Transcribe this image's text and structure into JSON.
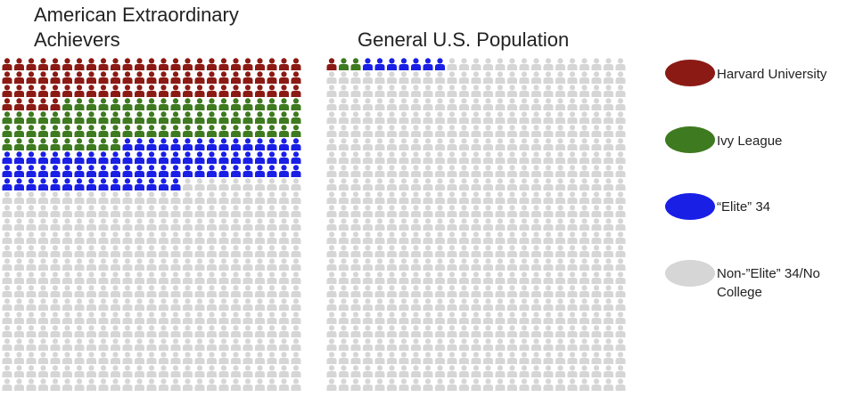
{
  "chart_data": {
    "type": "pictograph",
    "grid": {
      "columns": 25,
      "rows": 25,
      "total_icons": 625
    },
    "categories": [
      "Harvard University",
      "Ivy League",
      "“Elite” 34",
      "Non-”Elite” 34/No College"
    ],
    "colors": {
      "Harvard University": "#8b1a14",
      "Ivy League": "#3e7a1f",
      "“Elite” 34": "#1a1fe6",
      "Non-”Elite” 34/No College": "#d6d6d6"
    },
    "panels": [
      {
        "title_line1": "American Extraordinary",
        "title_line2": "Achievers",
        "counts": {
          "Harvard University": 80,
          "Ivy League": 80,
          "“Elite” 34": 80,
          "Non-”Elite” 34/No College": 385
        }
      },
      {
        "title": "General U.S. Population",
        "counts": {
          "Harvard University": 1,
          "Ivy League": 2,
          "“Elite” 34": 7,
          "Non-”Elite” 34/No College": 615
        }
      }
    ],
    "legend": {
      "position": "right",
      "entries": [
        "Harvard University",
        "Ivy League",
        "“Elite” 34",
        "Non-”Elite” 34/No College"
      ]
    }
  }
}
